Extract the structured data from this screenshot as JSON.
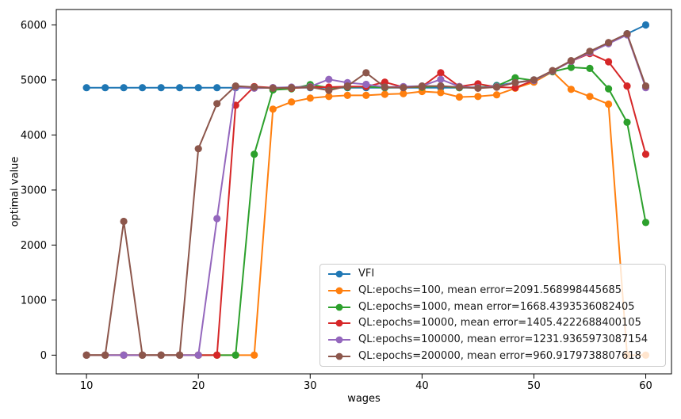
{
  "chart_data": {
    "type": "line",
    "title": "",
    "xlabel": "wages",
    "ylabel": "optimal value",
    "xlim": [
      7.3,
      62.3
    ],
    "ylim": [
      -340,
      6280
    ],
    "xticks": [
      10,
      20,
      30,
      40,
      50,
      60
    ],
    "yticks": [
      0,
      1000,
      2000,
      3000,
      4000,
      5000,
      6000
    ],
    "grid": false,
    "legend_position": "lower right",
    "marker": "circle",
    "x": [
      10,
      11.67,
      13.33,
      15,
      16.67,
      18.33,
      20,
      21.67,
      23.33,
      25,
      26.67,
      28.33,
      30,
      31.67,
      33.33,
      35,
      36.67,
      38.33,
      40,
      41.67,
      43.33,
      45,
      46.67,
      48.33,
      50,
      51.67,
      53.33,
      55,
      56.67,
      58.33,
      60
    ],
    "series": [
      {
        "name": "VFI",
        "color": "#1f77b4",
        "values": [
          4860,
          4860,
          4860,
          4860,
          4860,
          4860,
          4860,
          4860,
          4860,
          4860,
          4860,
          4860,
          4860,
          4860,
          4860,
          4860,
          4860,
          4860,
          4860,
          4860,
          4860,
          4860,
          4900,
          4950,
          5000,
          5160,
          5340,
          5510,
          5670,
          5840,
          6000
        ]
      },
      {
        "name": "QL:epochs=100, mean error=2091.568998445685",
        "color": "#ff7f0e",
        "values": [
          0,
          0,
          0,
          0,
          0,
          0,
          0,
          0,
          0,
          0,
          4470,
          4600,
          4670,
          4700,
          4720,
          4720,
          4740,
          4750,
          4790,
          4770,
          4690,
          4700,
          4730,
          4850,
          4960,
          5150,
          4830,
          4700,
          4560,
          0,
          0
        ]
      },
      {
        "name": "QL:epochs=1000, mean error=1668.4393536082405",
        "color": "#2ca02c",
        "values": [
          0,
          0,
          0,
          0,
          0,
          0,
          0,
          0,
          0,
          3650,
          4820,
          4840,
          4915,
          4860,
          4870,
          4880,
          4860,
          4870,
          4870,
          4890,
          4860,
          4870,
          4890,
          5040,
          4990,
          5150,
          5230,
          5210,
          4840,
          4230,
          2410
        ]
      },
      {
        "name": "QL:epochs=10000, mean error=1405.4222688400105",
        "color": "#d62728",
        "values": [
          0,
          0,
          0,
          0,
          0,
          0,
          0,
          0,
          4540,
          4880,
          4860,
          4850,
          4870,
          4870,
          4880,
          4880,
          4960,
          4870,
          4880,
          5130,
          4880,
          4930,
          4870,
          4860,
          4990,
          5160,
          5340,
          5480,
          5330,
          4890,
          3650
        ]
      },
      {
        "name": "QL:epochs=100000, mean error=1231.9365973087154",
        "color": "#9467bd",
        "values": [
          0,
          0,
          0,
          0,
          0,
          0,
          0,
          2480,
          4870,
          4850,
          4860,
          4870,
          4880,
          5010,
          4950,
          4920,
          4870,
          4880,
          4890,
          5010,
          4880,
          4860,
          4880,
          4950,
          4990,
          5160,
          5340,
          5500,
          5660,
          5820,
          4860
        ]
      },
      {
        "name": "QL:epochs=200000, mean error=960.9179738807618",
        "color": "#8c564b",
        "values": [
          0,
          0,
          2430,
          0,
          0,
          0,
          3750,
          4570,
          4890,
          4870,
          4850,
          4860,
          4870,
          4810,
          4890,
          5130,
          4870,
          4860,
          4890,
          4890,
          4870,
          4850,
          4870,
          4950,
          5000,
          5170,
          5350,
          5520,
          5680,
          5840,
          4890
        ]
      }
    ]
  }
}
